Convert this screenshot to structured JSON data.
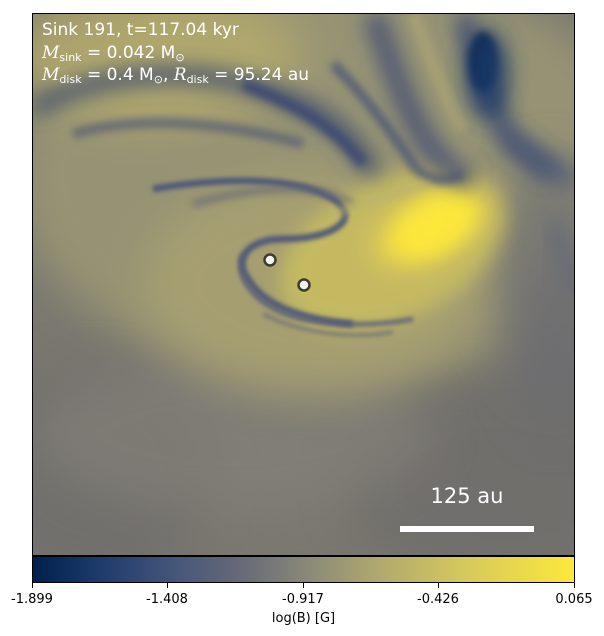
{
  "annotation": {
    "sink_line": "Sink 191, t=117.04 kyr",
    "msink_label": "M",
    "msink_sub": "sink",
    "msink_value": " = 0.042 M",
    "msink_unit_sub": "⊙",
    "mdisk_label": "M",
    "mdisk_sub": "disk",
    "mdisk_value": " = 0.4 M",
    "mdisk_unit_sub": "⊙",
    "rdisk_sep": ", ",
    "rdisk_label": "R",
    "rdisk_sub": "disk",
    "rdisk_value": " = 95.24 au"
  },
  "scale_bar": {
    "label": "125 au"
  },
  "sinks": [
    {
      "id": "sink-1"
    },
    {
      "id": "sink-2"
    }
  ],
  "colorbar": {
    "label": "log(B) [G]",
    "ticks": [
      "-1.899",
      "-1.408",
      "-0.917",
      "-0.426",
      "0.065"
    ],
    "min": -1.899,
    "max": 0.065,
    "colormap": "cividis",
    "colors": {
      "low": "#00204c",
      "mid": "#8d8c77",
      "high": "#fde83a"
    }
  }
}
